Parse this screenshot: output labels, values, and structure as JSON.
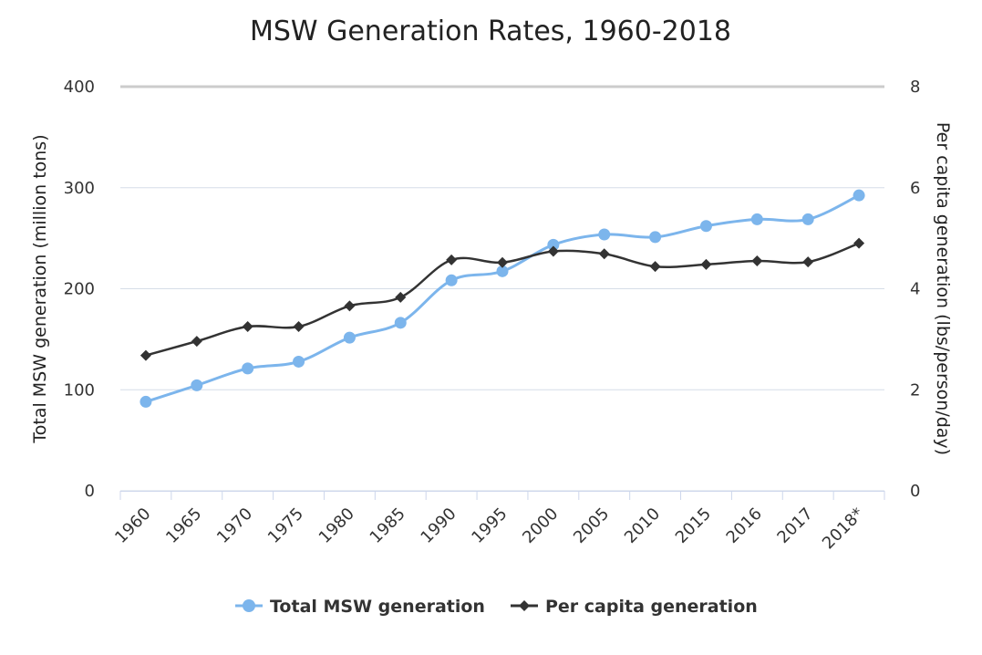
{
  "chart_data": {
    "type": "line",
    "title": "MSW Generation Rates, 1960-2018",
    "categories": [
      "1960",
      "1965",
      "1970",
      "1975",
      "1980",
      "1985",
      "1990",
      "1995",
      "2000",
      "2005",
      "2010",
      "2015",
      "2016",
      "2017",
      "2018*"
    ],
    "y_left": {
      "label": "Total MSW generation (million tons)",
      "ylim": [
        0,
        400
      ],
      "ticks": [
        "0",
        "100",
        "200",
        "300",
        "400"
      ]
    },
    "y_right": {
      "label": "Per capita generation (lbs/person/day)",
      "ylim": [
        0,
        8
      ],
      "ticks": [
        "0",
        "2",
        "4",
        "6",
        "8"
      ]
    },
    "grid": true,
    "legend_position": "bottom-center",
    "series": [
      {
        "name": "Total MSW generation",
        "axis": "left",
        "color": "#7cb5ec",
        "marker": "circle",
        "values": [
          88.1,
          104.4,
          121.1,
          127.8,
          151.6,
          166.3,
          208.3,
          217.3,
          243.5,
          253.7,
          251.1,
          262.1,
          268.7,
          268.7,
          292.4
        ]
      },
      {
        "name": "Per capita generation",
        "axis": "right",
        "color": "#333333",
        "marker": "diamond",
        "values": [
          2.68,
          2.96,
          3.25,
          3.25,
          3.66,
          3.83,
          4.57,
          4.52,
          4.74,
          4.69,
          4.44,
          4.48,
          4.55,
          4.53,
          4.9
        ]
      }
    ]
  }
}
